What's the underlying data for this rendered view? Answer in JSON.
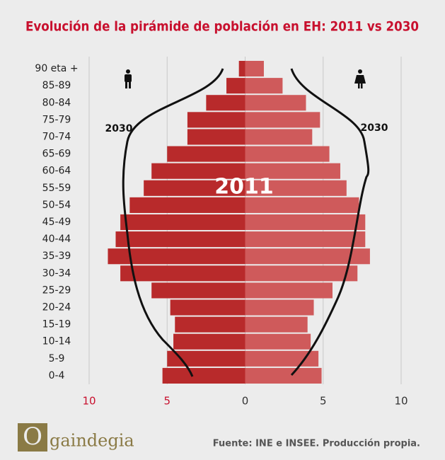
{
  "chart_data": {
    "type": "pyramid",
    "title": "Evolución de la pirámide de población en EH: 2011 vs 2030",
    "categories": [
      "90 eta +",
      "85-89",
      "80-84",
      "75-79",
      "70-74",
      "65-69",
      "60-64",
      "55-59",
      "50-54",
      "45-49",
      "40-44",
      "35-39",
      "30-34",
      "25-29",
      "20-24",
      "15-19",
      "10-14",
      "5-9",
      "0-4"
    ],
    "series": [
      {
        "name": "Gizonak",
        "side": "left",
        "color": "#b82a2b",
        "values": [
          0.4,
          1.2,
          2.5,
          3.7,
          3.7,
          5.0,
          6.0,
          6.5,
          7.4,
          8.0,
          8.3,
          8.8,
          8.0,
          6.0,
          4.8,
          4.5,
          4.6,
          5.0,
          5.3
        ]
      },
      {
        "name": "Emakumeak",
        "side": "right",
        "color": "#cf5a5b",
        "values": [
          1.2,
          2.4,
          3.9,
          4.8,
          4.3,
          5.4,
          6.1,
          6.5,
          7.3,
          7.7,
          7.7,
          8.0,
          7.2,
          5.6,
          4.4,
          4.0,
          4.2,
          4.7,
          4.9
        ]
      }
    ],
    "xlim": [
      -10,
      10
    ],
    "xticks": [
      {
        "value": -10,
        "label": "10"
      },
      {
        "value": -5,
        "label": "5"
      },
      0,
      5,
      10
    ],
    "grid": true,
    "annotations": {
      "left_2030": "2030",
      "right_2030": "2030",
      "center_2011": "2011"
    },
    "source": "Fuente: INE e INSEE. Producción propia.",
    "logo": "gaindegia"
  }
}
